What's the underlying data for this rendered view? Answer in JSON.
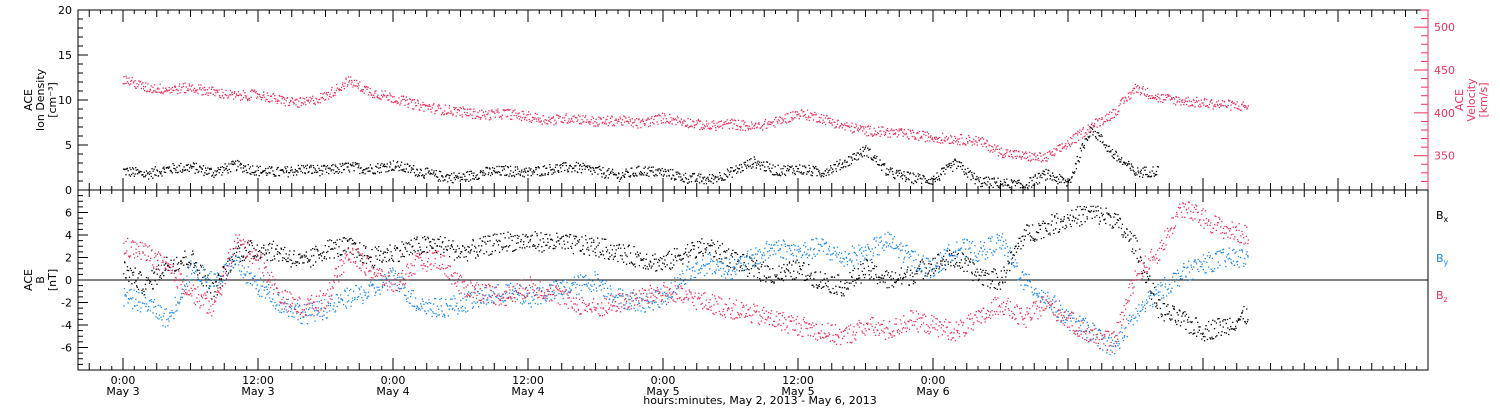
{
  "chart_data": [
    {
      "type": "scatter",
      "panel": "top",
      "ylabel_lines": [
        "ACE",
        "Ion Density",
        "[cm⁻³]"
      ],
      "y2label_lines": [
        "ACE",
        "Velocity",
        "[km/s]"
      ],
      "ylim": [
        0,
        20
      ],
      "y2lim": [
        310,
        520
      ],
      "yticks": [
        0,
        5,
        10,
        15,
        20
      ],
      "y2ticks": [
        350,
        400,
        450,
        500
      ],
      "series": [
        {
          "color": "#000000",
          "axis": "left",
          "points": [
            [
              0,
              2.2
            ],
            [
              2,
              1.8
            ],
            [
              4,
              2.4
            ],
            [
              6,
              2.6
            ],
            [
              8,
              2.0
            ],
            [
              10,
              2.8
            ],
            [
              12,
              2.2
            ],
            [
              14,
              2.0
            ],
            [
              16,
              2.4
            ],
            [
              18,
              2.2
            ],
            [
              20,
              2.6
            ],
            [
              22,
              2.4
            ],
            [
              24,
              2.8
            ],
            [
              26,
              2.2
            ],
            [
              28,
              1.6
            ],
            [
              30,
              1.4
            ],
            [
              32,
              2.0
            ],
            [
              34,
              2.2
            ],
            [
              36,
              2.0
            ],
            [
              38,
              2.4
            ],
            [
              40,
              2.6
            ],
            [
              42,
              2.2
            ],
            [
              44,
              1.6
            ],
            [
              46,
              2.2
            ],
            [
              48,
              2.0
            ],
            [
              50,
              1.4
            ],
            [
              52,
              1.2
            ],
            [
              54,
              2.0
            ],
            [
              56,
              3.2
            ],
            [
              58,
              2.2
            ],
            [
              60,
              2.4
            ],
            [
              62,
              2.0
            ],
            [
              64,
              3.0
            ],
            [
              66,
              4.5
            ],
            [
              68,
              2.0
            ],
            [
              70,
              1.4
            ],
            [
              72,
              1.2
            ],
            [
              74,
              3.0
            ],
            [
              76,
              1.0
            ],
            [
              78,
              0.8
            ],
            [
              80,
              0.5
            ],
            [
              82,
              1.8
            ],
            [
              84,
              0.8
            ],
            [
              86,
              7.0
            ],
            [
              88,
              4.0
            ],
            [
              90,
              2.0
            ],
            [
              92,
              2.2
            ]
          ]
        },
        {
          "color": "#e8325d",
          "axis": "right",
          "points": [
            [
              0,
              440
            ],
            [
              2,
              430
            ],
            [
              4,
              428
            ],
            [
              6,
              430
            ],
            [
              8,
              425
            ],
            [
              10,
              420
            ],
            [
              12,
              422
            ],
            [
              14,
              415
            ],
            [
              16,
              412
            ],
            [
              18,
              420
            ],
            [
              20,
              438
            ],
            [
              22,
              425
            ],
            [
              24,
              418
            ],
            [
              26,
              410
            ],
            [
              28,
              405
            ],
            [
              30,
              402
            ],
            [
              32,
              398
            ],
            [
              34,
              400
            ],
            [
              36,
              396
            ],
            [
              38,
              392
            ],
            [
              40,
              395
            ],
            [
              42,
              390
            ],
            [
              44,
              392
            ],
            [
              46,
              388
            ],
            [
              48,
              395
            ],
            [
              50,
              390
            ],
            [
              52,
              385
            ],
            [
              54,
              388
            ],
            [
              56,
              384
            ],
            [
              58,
              390
            ],
            [
              60,
              400
            ],
            [
              62,
              395
            ],
            [
              64,
              385
            ],
            [
              66,
              380
            ],
            [
              68,
              378
            ],
            [
              70,
              375
            ],
            [
              72,
              372
            ],
            [
              74,
              370
            ],
            [
              76,
              368
            ],
            [
              78,
              355
            ],
            [
              80,
              350
            ],
            [
              82,
              348
            ],
            [
              84,
              365
            ],
            [
              86,
              385
            ],
            [
              88,
              400
            ],
            [
              90,
              430
            ],
            [
              92,
              418
            ],
            [
              94,
              415
            ],
            [
              96,
              412
            ],
            [
              98,
              410
            ],
            [
              100,
              408
            ]
          ]
        }
      ]
    },
    {
      "type": "scatter",
      "panel": "bottom",
      "ylabel_lines": [
        "ACE",
        "B",
        "[nT]"
      ],
      "ylim": [
        -8,
        8
      ],
      "yticks": [
        -6,
        -4,
        -2,
        0,
        2,
        4,
        6
      ],
      "series": [
        {
          "name": "Bx",
          "label_base": "B",
          "label_sub": "x",
          "color": "#000000",
          "points": [
            [
              0,
              1.0
            ],
            [
              2,
              -0.5
            ],
            [
              4,
              1.5
            ],
            [
              6,
              2.0
            ],
            [
              8,
              -1.0
            ],
            [
              10,
              2.5
            ],
            [
              12,
              2.8
            ],
            [
              14,
              2.5
            ],
            [
              16,
              1.5
            ],
            [
              18,
              2.8
            ],
            [
              20,
              3.0
            ],
            [
              22,
              2.0
            ],
            [
              24,
              2.5
            ],
            [
              26,
              3.0
            ],
            [
              28,
              3.2
            ],
            [
              30,
              2.5
            ],
            [
              32,
              3.0
            ],
            [
              34,
              3.5
            ],
            [
              36,
              3.5
            ],
            [
              38,
              3.4
            ],
            [
              40,
              3.2
            ],
            [
              42,
              3.0
            ],
            [
              44,
              2.5
            ],
            [
              46,
              2.0
            ],
            [
              48,
              1.5
            ],
            [
              50,
              2.5
            ],
            [
              52,
              3.0
            ],
            [
              54,
              2.0
            ],
            [
              56,
              1.0
            ],
            [
              58,
              0.5
            ],
            [
              60,
              1.0
            ],
            [
              62,
              0.0
            ],
            [
              64,
              -0.5
            ],
            [
              66,
              1.0
            ],
            [
              68,
              0.0
            ],
            [
              70,
              0.5
            ],
            [
              72,
              1.5
            ],
            [
              74,
              2.0
            ],
            [
              76,
              0.5
            ],
            [
              78,
              0.0
            ],
            [
              80,
              4.0
            ],
            [
              82,
              4.8
            ],
            [
              84,
              5.5
            ],
            [
              86,
              6.0
            ],
            [
              88,
              5.5
            ],
            [
              90,
              3.0
            ],
            [
              92,
              -2.5
            ],
            [
              94,
              -3.5
            ],
            [
              96,
              -4.5
            ],
            [
              98,
              -4.0
            ],
            [
              100,
              -3.0
            ]
          ]
        },
        {
          "name": "By",
          "label_base": "B",
          "label_sub": "y",
          "color": "#1e88e5",
          "points": [
            [
              0,
              -1.5
            ],
            [
              2,
              -2.0
            ],
            [
              4,
              -3.5
            ],
            [
              6,
              1.0
            ],
            [
              8,
              0.0
            ],
            [
              10,
              1.5
            ],
            [
              12,
              -0.5
            ],
            [
              14,
              -2.0
            ],
            [
              16,
              -3.0
            ],
            [
              18,
              -2.5
            ],
            [
              20,
              -1.5
            ],
            [
              22,
              -1.0
            ],
            [
              24,
              0.5
            ],
            [
              26,
              -2.0
            ],
            [
              28,
              -2.5
            ],
            [
              30,
              -2.0
            ],
            [
              32,
              -1.5
            ],
            [
              34,
              -1.0
            ],
            [
              36,
              -1.5
            ],
            [
              38,
              -1.0
            ],
            [
              40,
              -0.5
            ],
            [
              42,
              0.0
            ],
            [
              44,
              -1.5
            ],
            [
              46,
              -2.0
            ],
            [
              48,
              -1.5
            ],
            [
              50,
              0.5
            ],
            [
              52,
              1.5
            ],
            [
              54,
              1.0
            ],
            [
              56,
              2.0
            ],
            [
              58,
              3.0
            ],
            [
              60,
              2.5
            ],
            [
              62,
              3.0
            ],
            [
              64,
              2.0
            ],
            [
              66,
              2.5
            ],
            [
              68,
              3.5
            ],
            [
              70,
              2.0
            ],
            [
              72,
              1.0
            ],
            [
              74,
              3.0
            ],
            [
              76,
              2.5
            ],
            [
              78,
              3.5
            ],
            [
              80,
              0.0
            ],
            [
              82,
              -1.5
            ],
            [
              84,
              -3.5
            ],
            [
              86,
              -4.5
            ],
            [
              88,
              -6.0
            ],
            [
              90,
              -3.0
            ],
            [
              92,
              -1.0
            ],
            [
              94,
              0.5
            ],
            [
              96,
              1.5
            ],
            [
              98,
              2.0
            ],
            [
              100,
              2.0
            ]
          ]
        },
        {
          "name": "Bz",
          "label_base": "B",
          "label_sub": "z",
          "color": "#e8325d",
          "points": [
            [
              0,
              3.0
            ],
            [
              2,
              2.5
            ],
            [
              4,
              1.0
            ],
            [
              6,
              -1.0
            ],
            [
              8,
              -2.5
            ],
            [
              10,
              3.5
            ],
            [
              12,
              2.0
            ],
            [
              14,
              -1.5
            ],
            [
              16,
              -2.5
            ],
            [
              18,
              -1.5
            ],
            [
              20,
              2.5
            ],
            [
              22,
              1.0
            ],
            [
              24,
              -0.5
            ],
            [
              26,
              1.5
            ],
            [
              28,
              2.0
            ],
            [
              30,
              -0.5
            ],
            [
              32,
              -1.0
            ],
            [
              34,
              -1.5
            ],
            [
              36,
              -0.5
            ],
            [
              38,
              -1.0
            ],
            [
              40,
              -2.0
            ],
            [
              42,
              -2.5
            ],
            [
              44,
              -2.0
            ],
            [
              46,
              -1.5
            ],
            [
              48,
              -1.0
            ],
            [
              50,
              -1.5
            ],
            [
              52,
              -2.0
            ],
            [
              54,
              -2.5
            ],
            [
              56,
              -3.0
            ],
            [
              58,
              -3.5
            ],
            [
              60,
              -4.0
            ],
            [
              62,
              -4.5
            ],
            [
              64,
              -5.0
            ],
            [
              66,
              -4.0
            ],
            [
              68,
              -4.5
            ],
            [
              70,
              -3.5
            ],
            [
              72,
              -4.0
            ],
            [
              74,
              -4.5
            ],
            [
              76,
              -3.5
            ],
            [
              78,
              -2.0
            ],
            [
              80,
              -3.5
            ],
            [
              82,
              -2.0
            ],
            [
              84,
              -3.5
            ],
            [
              86,
              -5.0
            ],
            [
              88,
              -5.5
            ],
            [
              90,
              0.5
            ],
            [
              92,
              2.5
            ],
            [
              94,
              6.5
            ],
            [
              96,
              5.5
            ],
            [
              98,
              4.5
            ],
            [
              100,
              4.0
            ]
          ]
        }
      ]
    }
  ],
  "x_axis": {
    "xlim": [
      -4,
      116
    ],
    "ticks": [
      {
        "x": 0,
        "time": "0:00",
        "date": "May 3"
      },
      {
        "x": 12,
        "time": "12:00",
        "date": "May 3"
      },
      {
        "x": 24,
        "time": "0:00",
        "date": "May 4"
      },
      {
        "x": 36,
        "time": "12:00",
        "date": "May 4"
      },
      {
        "x": 48,
        "time": "0:00",
        "date": "May 5"
      },
      {
        "x": 60,
        "time": "12:00",
        "date": "May 5"
      },
      {
        "x": 72,
        "time": "0:00",
        "date": "May 6"
      }
    ],
    "xlabel": "hours:minutes, May  2, 2013 - May  6, 2013"
  },
  "colors": {
    "black": "#000000",
    "red": "#e8325d",
    "blue": "#1e88e5"
  }
}
